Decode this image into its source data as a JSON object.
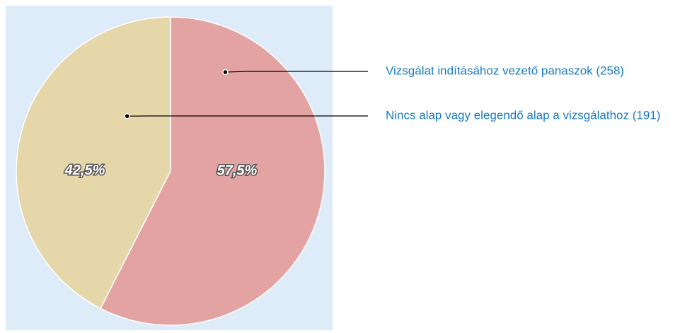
{
  "chart_data": {
    "type": "pie",
    "categories": [
      "Vizsgálat indításához vezető panaszok (258)",
      "Nincs alap vagy elegendő alap a vizsgálathoz (191)"
    ],
    "values": [
      57.5,
      42.5
    ],
    "value_labels": [
      "57,5%",
      "42,5%"
    ],
    "colors": [
      "#e2a3a2",
      "#e6d7aa"
    ]
  }
}
